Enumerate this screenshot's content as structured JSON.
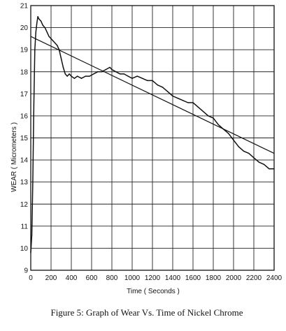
{
  "chart_data": {
    "type": "line",
    "title": "",
    "caption": "Figure 5: Graph of Wear Vs. Time of Nickel Chrome",
    "xlabel": "Time ( Seconds )",
    "ylabel": "WEAR ( Micrometers )",
    "xlim": [
      0,
      2400
    ],
    "ylim": [
      9,
      21
    ],
    "xticks": [
      0,
      200,
      400,
      600,
      800,
      1000,
      1200,
      1400,
      1600,
      1800,
      2000,
      2200,
      2400
    ],
    "yticks": [
      9,
      10,
      11,
      12,
      13,
      14,
      15,
      16,
      17,
      18,
      19,
      20,
      21
    ],
    "grid": true,
    "series": [
      {
        "kind": "measured",
        "color": "#111111",
        "x": [
          0,
          10,
          20,
          30,
          40,
          50,
          60,
          70,
          80,
          100,
          120,
          140,
          160,
          180,
          200,
          220,
          240,
          260,
          280,
          300,
          320,
          340,
          360,
          380,
          400,
          430,
          460,
          500,
          540,
          580,
          620,
          660,
          700,
          740,
          780,
          800,
          840,
          880,
          920,
          960,
          1000,
          1050,
          1100,
          1150,
          1200,
          1250,
          1300,
          1350,
          1400,
          1450,
          1500,
          1550,
          1600,
          1650,
          1700,
          1750,
          1800,
          1850,
          1900,
          1950,
          2000,
          2050,
          2100,
          2150,
          2200,
          2250,
          2300,
          2350,
          2400
        ],
        "y": [
          9.8,
          10.6,
          13.0,
          16.5,
          19.0,
          19.8,
          20.2,
          20.5,
          20.4,
          20.3,
          20.1,
          20.0,
          19.8,
          19.6,
          19.5,
          19.4,
          19.3,
          19.2,
          19.0,
          18.6,
          18.2,
          17.9,
          17.8,
          17.9,
          17.8,
          17.7,
          17.8,
          17.7,
          17.8,
          17.8,
          17.9,
          18.0,
          18.0,
          18.1,
          18.2,
          18.1,
          18.0,
          17.9,
          17.9,
          17.8,
          17.7,
          17.8,
          17.7,
          17.6,
          17.6,
          17.4,
          17.3,
          17.1,
          16.9,
          16.8,
          16.7,
          16.6,
          16.6,
          16.4,
          16.2,
          16.0,
          15.9,
          15.6,
          15.4,
          15.2,
          14.9,
          14.6,
          14.4,
          14.3,
          14.1,
          13.9,
          13.8,
          13.6,
          13.6
        ]
      },
      {
        "kind": "fit",
        "color": "#111111",
        "x": [
          0,
          2400
        ],
        "y": [
          19.6,
          14.3
        ]
      }
    ]
  }
}
